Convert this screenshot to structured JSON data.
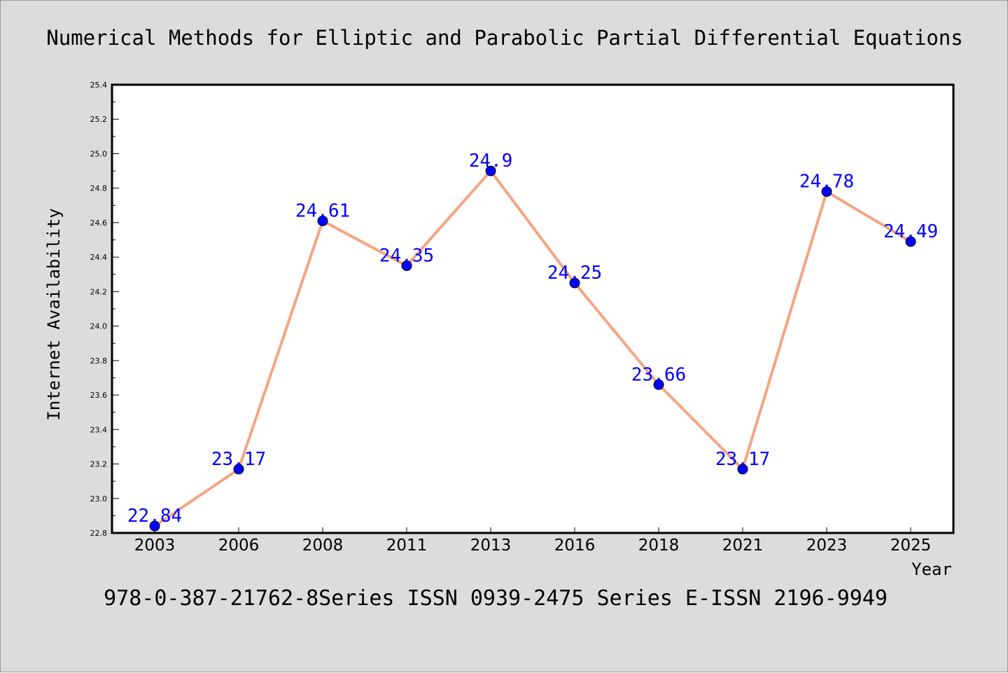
{
  "chart_data": {
    "type": "line",
    "title": "Numerical Methods for Elliptic and Parabolic Partial Differential Equations",
    "subtitle": "978-0-387-21762-8Series ISSN 0939-2475 Series E-ISSN 2196-9949",
    "xlabel": "Year",
    "ylabel": "Internet Availability",
    "categories": [
      "2003",
      "2006",
      "2008",
      "2011",
      "2013",
      "2016",
      "2018",
      "2021",
      "2023",
      "2025"
    ],
    "series": [
      {
        "values": [
          22.84,
          23.17,
          24.61,
          24.35,
          24.9,
          24.25,
          23.66,
          23.17,
          24.78,
          24.49
        ],
        "data_labels": [
          "22.84",
          "23.17",
          "24.61",
          "24.35",
          "24.9",
          "24.25",
          "23.66",
          "23.17",
          "24.78",
          "24.49"
        ]
      }
    ],
    "ylim": [
      22.8,
      25.4
    ],
    "yticks": [
      "22.8",
      "23.0",
      "23.2",
      "23.4",
      "23.6",
      "23.8",
      "24.0",
      "24.2",
      "24.4",
      "24.6",
      "24.8",
      "25.0",
      "25.2",
      "25.4"
    ],
    "grid": false,
    "legend": "none",
    "colors": {
      "background": "#dcdcdc",
      "plot_area": "#ffffff",
      "line": "#f4a582",
      "marker": "#0000ff",
      "data_label": "#0000ff",
      "text": "#000000"
    }
  }
}
